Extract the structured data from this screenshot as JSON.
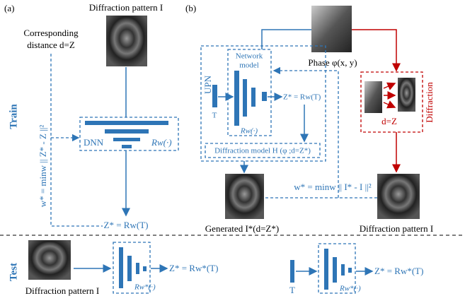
{
  "panel_a": {
    "label": "(a)",
    "pattern_title": "Diffraction pattern I",
    "distance_label": [
      "Corresponding",
      "distance d=Z"
    ],
    "train_label": "Train",
    "loss": "w* = minw || Z* - Z ||²",
    "dnn": "DNN",
    "network": "Rw(·)",
    "output": "Z* = Rw(T)"
  },
  "panel_b": {
    "label": "(b)",
    "phase": "Phase φ(x, y)",
    "upn": "UPN",
    "network_model": [
      "Network",
      "model"
    ],
    "input": "T",
    "output": "Z* = Rw(T)",
    "network": "Rw(·)",
    "diffraction_model": "Diffraction model  H (φ ;d=Z*)",
    "diffraction": "Diffraction",
    "distance": "d=Z",
    "generated": "Generated I*(d=Z*)",
    "loss": "w* = minw || I* - I ||²",
    "pattern": "Diffraction pattern  I"
  },
  "test": {
    "label": "Test",
    "pattern": "Diffraction pattern  I",
    "network_a": "Rw*(·)",
    "output_a": "Z* = Rw*(T)",
    "input_b": "T",
    "network_b": "Rw*(·)",
    "output_b": "Z* = Rw*(T)"
  }
}
